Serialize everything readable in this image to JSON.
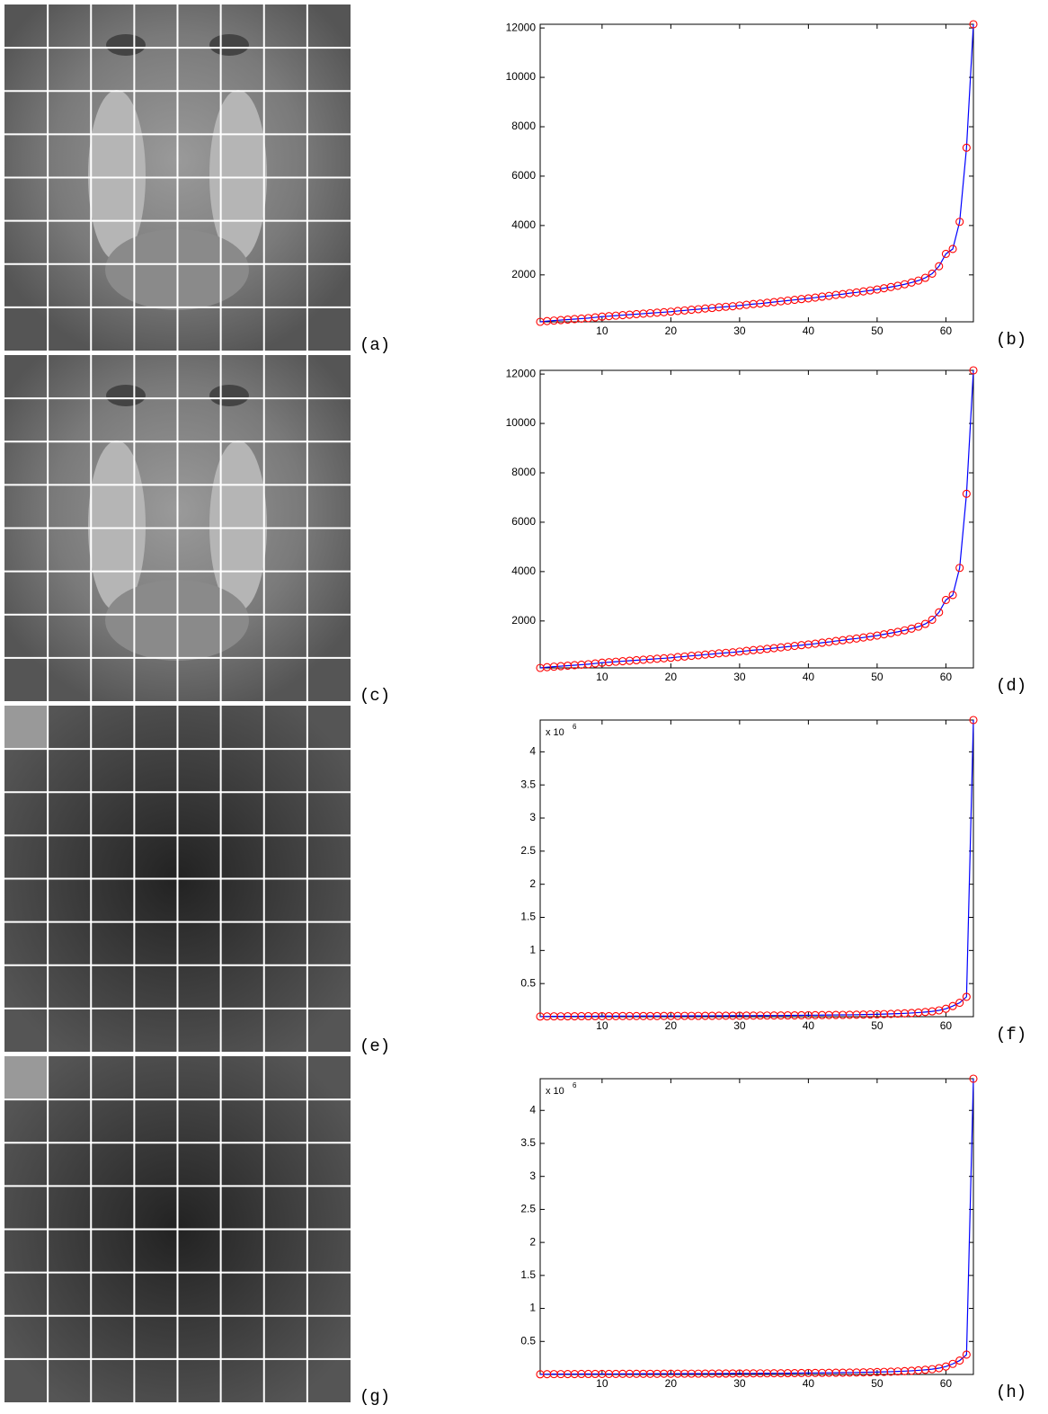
{
  "images": [
    {
      "label": "(a)"
    },
    {
      "label": "(c)"
    },
    {
      "label": "(e)"
    },
    {
      "label": "(g)"
    }
  ],
  "chart_data": [
    {
      "type": "line",
      "label": "(b)",
      "x": [
        1,
        2,
        3,
        4,
        5,
        6,
        7,
        8,
        9,
        10,
        11,
        12,
        13,
        14,
        15,
        16,
        17,
        18,
        19,
        20,
        21,
        22,
        23,
        24,
        25,
        26,
        27,
        28,
        29,
        30,
        31,
        32,
        33,
        34,
        35,
        36,
        37,
        38,
        39,
        40,
        41,
        42,
        43,
        44,
        45,
        46,
        47,
        48,
        49,
        50,
        51,
        52,
        53,
        54,
        55,
        56,
        57,
        58,
        59,
        60,
        61,
        62,
        63,
        64
      ],
      "series": [
        {
          "color": "#0000ff",
          "marker_color": "#ff0000",
          "values": [
            100,
            130,
            150,
            170,
            190,
            210,
            230,
            250,
            280,
            310,
            330,
            350,
            370,
            390,
            410,
            430,
            450,
            470,
            490,
            510,
            540,
            560,
            590,
            610,
            640,
            660,
            690,
            710,
            730,
            760,
            790,
            820,
            840,
            870,
            900,
            930,
            960,
            990,
            1020,
            1050,
            1080,
            1120,
            1150,
            1190,
            1220,
            1260,
            1290,
            1330,
            1370,
            1410,
            1460,
            1510,
            1560,
            1620,
            1690,
            1770,
            1880,
            2050,
            2350,
            2850,
            3050,
            4150,
            7150,
            12150
          ]
        }
      ],
      "xlim": [
        1,
        64
      ],
      "xticks": [
        10,
        20,
        30,
        40,
        50,
        60
      ],
      "ylim": [
        100,
        12150
      ],
      "yticks": [
        2000,
        4000,
        6000,
        8000,
        10000,
        12000
      ]
    },
    {
      "type": "line",
      "label": "(d)",
      "x": [
        1,
        2,
        3,
        4,
        5,
        6,
        7,
        8,
        9,
        10,
        11,
        12,
        13,
        14,
        15,
        16,
        17,
        18,
        19,
        20,
        21,
        22,
        23,
        24,
        25,
        26,
        27,
        28,
        29,
        30,
        31,
        32,
        33,
        34,
        35,
        36,
        37,
        38,
        39,
        40,
        41,
        42,
        43,
        44,
        45,
        46,
        47,
        48,
        49,
        50,
        51,
        52,
        53,
        54,
        55,
        56,
        57,
        58,
        59,
        60,
        61,
        62,
        63,
        64
      ],
      "series": [
        {
          "color": "#0000ff",
          "marker_color": "#ff0000",
          "values": [
            100,
            130,
            150,
            170,
            190,
            210,
            230,
            250,
            280,
            310,
            330,
            350,
            370,
            390,
            410,
            430,
            450,
            470,
            490,
            510,
            540,
            560,
            590,
            610,
            640,
            660,
            690,
            710,
            730,
            760,
            790,
            820,
            840,
            870,
            900,
            930,
            960,
            990,
            1020,
            1050,
            1080,
            1120,
            1150,
            1190,
            1220,
            1260,
            1290,
            1330,
            1370,
            1410,
            1460,
            1510,
            1560,
            1620,
            1690,
            1770,
            1880,
            2050,
            2350,
            2850,
            3050,
            4150,
            7150,
            12150
          ]
        }
      ],
      "xlim": [
        1,
        64
      ],
      "xticks": [
        10,
        20,
        30,
        40,
        50,
        60
      ],
      "ylim": [
        100,
        12150
      ],
      "yticks": [
        2000,
        4000,
        6000,
        8000,
        10000,
        12000
      ]
    },
    {
      "type": "line",
      "label": "(f)",
      "y_multiplier": "x 10",
      "y_exponent": "6",
      "x": [
        1,
        2,
        3,
        4,
        5,
        6,
        7,
        8,
        9,
        10,
        11,
        12,
        13,
        14,
        15,
        16,
        17,
        18,
        19,
        20,
        21,
        22,
        23,
        24,
        25,
        26,
        27,
        28,
        29,
        30,
        31,
        32,
        33,
        34,
        35,
        36,
        37,
        38,
        39,
        40,
        41,
        42,
        43,
        44,
        45,
        46,
        47,
        48,
        49,
        50,
        51,
        52,
        53,
        54,
        55,
        56,
        57,
        58,
        59,
        60,
        61,
        62,
        63,
        64
      ],
      "series": [
        {
          "color": "#0000ff",
          "marker_color": "#ff0000",
          "values": [
            0.002,
            0.004,
            0.005,
            0.005,
            0.006,
            0.006,
            0.007,
            0.007,
            0.007,
            0.008,
            0.008,
            0.008,
            0.009,
            0.009,
            0.009,
            0.01,
            0.01,
            0.01,
            0.011,
            0.011,
            0.011,
            0.012,
            0.012,
            0.012,
            0.013,
            0.013,
            0.014,
            0.014,
            0.015,
            0.015,
            0.016,
            0.016,
            0.017,
            0.017,
            0.018,
            0.018,
            0.019,
            0.02,
            0.021,
            0.022,
            0.023,
            0.024,
            0.025,
            0.026,
            0.027,
            0.028,
            0.03,
            0.032,
            0.034,
            0.036,
            0.039,
            0.042,
            0.046,
            0.05,
            0.055,
            0.062,
            0.07,
            0.08,
            0.095,
            0.12,
            0.16,
            0.21,
            0.3,
            4.48
          ]
        }
      ],
      "xlim": [
        1,
        64
      ],
      "xticks": [
        10,
        20,
        30,
        40,
        50,
        60
      ],
      "ylim": [
        0,
        4.48
      ],
      "yticks": [
        0.5,
        1,
        1.5,
        2,
        2.5,
        3,
        3.5,
        4
      ]
    },
    {
      "type": "line",
      "label": "(h)",
      "y_multiplier": "x 10",
      "y_exponent": "6",
      "x": [
        1,
        2,
        3,
        4,
        5,
        6,
        7,
        8,
        9,
        10,
        11,
        12,
        13,
        14,
        15,
        16,
        17,
        18,
        19,
        20,
        21,
        22,
        23,
        24,
        25,
        26,
        27,
        28,
        29,
        30,
        31,
        32,
        33,
        34,
        35,
        36,
        37,
        38,
        39,
        40,
        41,
        42,
        43,
        44,
        45,
        46,
        47,
        48,
        49,
        50,
        51,
        52,
        53,
        54,
        55,
        56,
        57,
        58,
        59,
        60,
        61,
        62,
        63,
        64
      ],
      "series": [
        {
          "color": "#0000ff",
          "marker_color": "#ff0000",
          "values": [
            0.002,
            0.004,
            0.005,
            0.005,
            0.006,
            0.006,
            0.007,
            0.007,
            0.007,
            0.008,
            0.008,
            0.008,
            0.009,
            0.009,
            0.009,
            0.01,
            0.01,
            0.01,
            0.011,
            0.011,
            0.011,
            0.012,
            0.012,
            0.012,
            0.013,
            0.013,
            0.014,
            0.014,
            0.015,
            0.015,
            0.016,
            0.016,
            0.017,
            0.017,
            0.018,
            0.018,
            0.019,
            0.02,
            0.021,
            0.022,
            0.023,
            0.024,
            0.025,
            0.026,
            0.027,
            0.028,
            0.03,
            0.032,
            0.034,
            0.036,
            0.039,
            0.042,
            0.046,
            0.05,
            0.055,
            0.062,
            0.07,
            0.08,
            0.095,
            0.12,
            0.16,
            0.21,
            0.3,
            4.48
          ]
        }
      ],
      "xlim": [
        1,
        64
      ],
      "xticks": [
        10,
        20,
        30,
        40,
        50,
        60
      ],
      "ylim": [
        0,
        4.48
      ],
      "yticks": [
        0.5,
        1,
        1.5,
        2,
        2.5,
        3,
        3.5,
        4
      ]
    }
  ]
}
